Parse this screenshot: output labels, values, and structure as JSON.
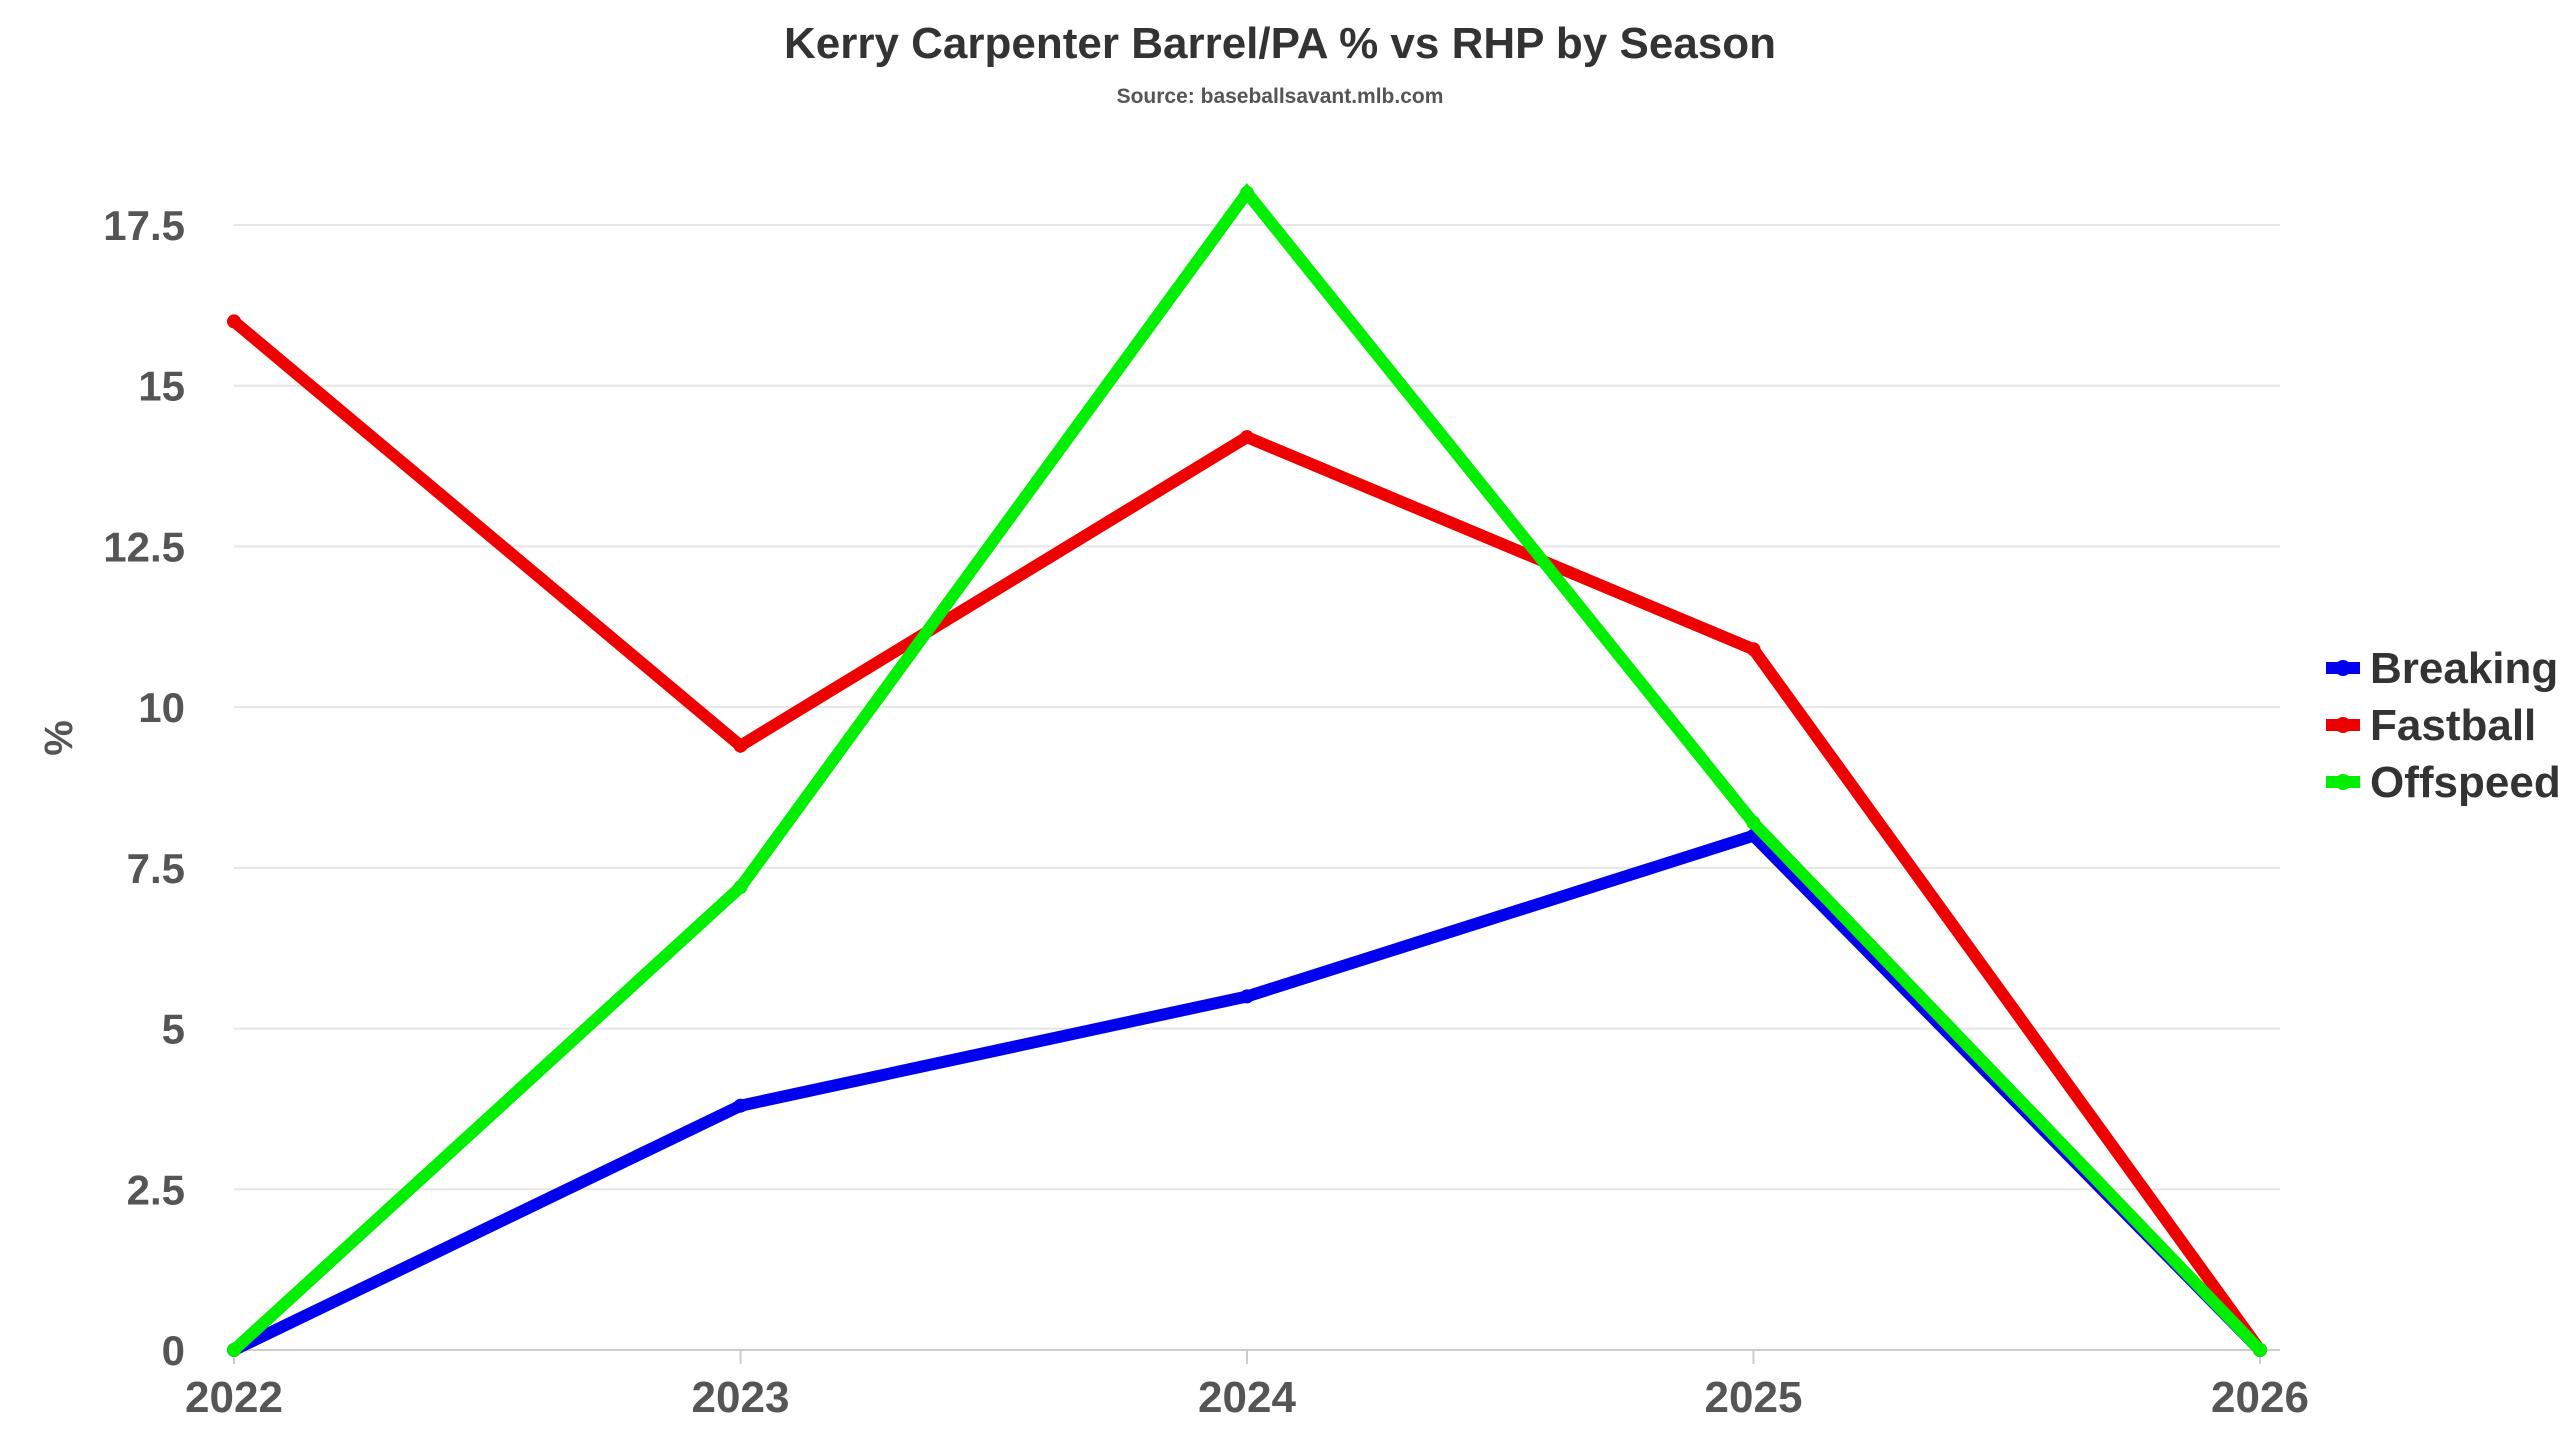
{
  "chart_data": {
    "type": "line",
    "title": "Kerry Carpenter Barrel/PA % vs RHP by Season",
    "subtitle": "Source: baseballsavant.mlb.com",
    "xlabel": "",
    "ylabel": "%",
    "x": [
      "2022",
      "2023",
      "2024",
      "2025",
      "2026"
    ],
    "ylim": [
      0,
      17.5
    ],
    "yticks": [
      "0",
      "2.5",
      "5",
      "7.5",
      "10",
      "12.5",
      "15",
      "17.5"
    ],
    "grid": true,
    "legend_position": "right",
    "series": [
      {
        "name": "Breaking",
        "color": "#0000ee",
        "values": [
          0,
          3.8,
          5.5,
          8.0,
          0
        ]
      },
      {
        "name": "Fastball",
        "color": "#ee0000",
        "values": [
          16.0,
          9.4,
          14.2,
          10.9,
          0
        ]
      },
      {
        "name": "Offspeed",
        "color": "#00ee00",
        "values": [
          0,
          7.2,
          18.0,
          8.2,
          0
        ]
      }
    ]
  }
}
